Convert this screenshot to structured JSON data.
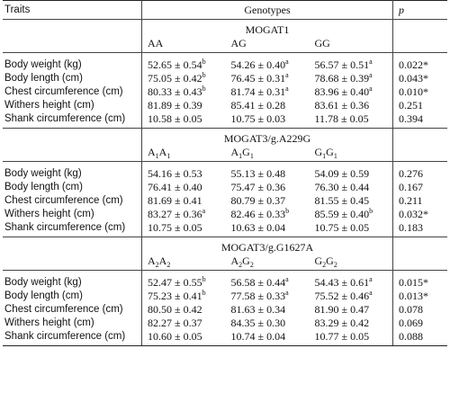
{
  "header": {
    "traits": "Traits",
    "genotypes": "Genotypes",
    "p": "p"
  },
  "sections": [
    {
      "gene": "MOGAT1",
      "genotypes": [
        {
          "a": "AA",
          "a_sub": "",
          "b": "",
          "b_sub": ""
        },
        {
          "a": "AG",
          "a_sub": "",
          "b": "",
          "b_sub": ""
        },
        {
          "a": "GG",
          "a_sub": "",
          "b": "",
          "b_sub": ""
        }
      ],
      "rows": [
        {
          "trait": "Body weight (kg)",
          "vals": [
            {
              "v": "52.65 ± 0.54",
              "s": "b"
            },
            {
              "v": "54.26 ± 0.40",
              "s": "a"
            },
            {
              "v": "56.57 ± 0.51",
              "s": "a"
            }
          ],
          "p": "0.022*"
        },
        {
          "trait": "Body length (cm)",
          "vals": [
            {
              "v": "75.05 ± 0.42",
              "s": "b"
            },
            {
              "v": "76.45 ± 0.31",
              "s": "a"
            },
            {
              "v": "78.68 ± 0.39",
              "s": "a"
            }
          ],
          "p": "0.043*"
        },
        {
          "trait": "Chest circumference (cm)",
          "vals": [
            {
              "v": "80.33 ± 0.43",
              "s": "b"
            },
            {
              "v": "81.74 ± 0.31",
              "s": "a"
            },
            {
              "v": "83.96 ± 0.40",
              "s": "a"
            }
          ],
          "p": "0.010*"
        },
        {
          "trait": "Withers height (cm)",
          "vals": [
            {
              "v": "81.89 ± 0.39",
              "s": ""
            },
            {
              "v": "85.41 ± 0.28",
              "s": ""
            },
            {
              "v": "83.61 ± 0.36",
              "s": ""
            }
          ],
          "p": "0.251"
        },
        {
          "trait": "Shank circumference (cm)",
          "vals": [
            {
              "v": "10.58 ± 0.05",
              "s": ""
            },
            {
              "v": "10.75 ± 0.03",
              "s": ""
            },
            {
              "v": "11.78 ± 0.05",
              "s": ""
            }
          ],
          "p": "0.394"
        }
      ]
    },
    {
      "gene": "MOGAT3/g.A229G",
      "genotypes": [
        {
          "a": "A",
          "a_sub": "1",
          "b": "A",
          "b_sub": "1"
        },
        {
          "a": "A",
          "a_sub": "1",
          "b": "G",
          "b_sub": "1"
        },
        {
          "a": "G",
          "a_sub": "1",
          "b": "G",
          "b_sub": "1"
        }
      ],
      "rows": [
        {
          "trait": "Body weight (kg)",
          "vals": [
            {
              "v": "54.16 ± 0.53",
              "s": ""
            },
            {
              "v": "55.13 ± 0.48",
              "s": ""
            },
            {
              "v": "54.09 ± 0.59",
              "s": ""
            }
          ],
          "p": "0.276"
        },
        {
          "trait": "Body length (cm)",
          "vals": [
            {
              "v": "76.41 ± 0.40",
              "s": ""
            },
            {
              "v": "75.47 ± 0.36",
              "s": ""
            },
            {
              "v": "76.30 ± 0.44",
              "s": ""
            }
          ],
          "p": "0.167"
        },
        {
          "trait": "Chest circumference (cm)",
          "vals": [
            {
              "v": "81.69 ± 0.41",
              "s": ""
            },
            {
              "v": "80.79 ± 0.37",
              "s": ""
            },
            {
              "v": "81.55 ± 0.45",
              "s": ""
            }
          ],
          "p": "0.211"
        },
        {
          "trait": "Withers height (cm)",
          "vals": [
            {
              "v": "83.27 ± 0.36",
              "s": "a"
            },
            {
              "v": "82.46 ± 0.33",
              "s": "b"
            },
            {
              "v": "85.59 ± 0.40",
              "s": "b"
            }
          ],
          "p": "0.032*"
        },
        {
          "trait": "Shank circumference (cm)",
          "vals": [
            {
              "v": "10.75 ± 0.05",
              "s": ""
            },
            {
              "v": "10.63 ± 0.04",
              "s": ""
            },
            {
              "v": "10.75 ± 0.05",
              "s": ""
            }
          ],
          "p": "0.183"
        }
      ]
    },
    {
      "gene": "MOGAT3/g.G1627A",
      "genotypes": [
        {
          "a": "A",
          "a_sub": "2",
          "b": "A",
          "b_sub": "2"
        },
        {
          "a": "A",
          "a_sub": "2",
          "b": "G",
          "b_sub": "2"
        },
        {
          "a": "G",
          "a_sub": "2",
          "b": "G",
          "b_sub": "2"
        }
      ],
      "rows": [
        {
          "trait": "Body weight (kg)",
          "vals": [
            {
              "v": "52.47 ± 0.55",
              "s": "b"
            },
            {
              "v": "56.58 ± 0.44",
              "s": "a"
            },
            {
              "v": "54.43 ± 0.61",
              "s": "a"
            }
          ],
          "p": "0.015*"
        },
        {
          "trait": "Body length (cm)",
          "vals": [
            {
              "v": "75.23 ± 0.41",
              "s": "b"
            },
            {
              "v": "77.58 ± 0.33",
              "s": "a"
            },
            {
              "v": "75.52 ± 0.46",
              "s": "a"
            }
          ],
          "p": "0.013*"
        },
        {
          "trait": "Chest circumference (cm)",
          "vals": [
            {
              "v": "80.50 ± 0.42",
              "s": ""
            },
            {
              "v": "81.63 ± 0.34",
              "s": ""
            },
            {
              "v": "81.90 ± 0.47",
              "s": ""
            }
          ],
          "p": "0.078"
        },
        {
          "trait": "Withers height (cm)",
          "vals": [
            {
              "v": "82.27 ± 0.37",
              "s": ""
            },
            {
              "v": "84.35 ± 0.30",
              "s": ""
            },
            {
              "v": "83.29 ± 0.42",
              "s": ""
            }
          ],
          "p": "0.069"
        },
        {
          "trait": "Shank circumference (cm)",
          "vals": [
            {
              "v": "10.60 ± 0.05",
              "s": ""
            },
            {
              "v": "10.74 ± 0.04",
              "s": ""
            },
            {
              "v": "10.77 ± 0.05",
              "s": ""
            }
          ],
          "p": "0.088"
        }
      ]
    }
  ]
}
